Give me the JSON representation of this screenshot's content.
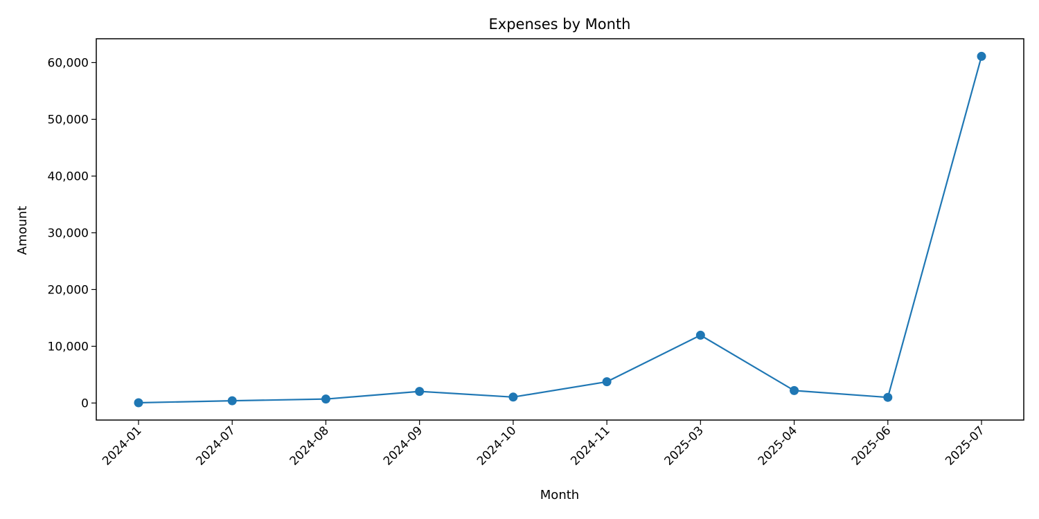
{
  "chart_data": {
    "type": "line",
    "title": "Expenses by Month",
    "xlabel": "Month",
    "ylabel": "Amount",
    "categories": [
      "2024-01",
      "2024-07",
      "2024-08",
      "2024-09",
      "2024-10",
      "2024-11",
      "2025-03",
      "2025-04",
      "2025-06",
      "2025-07"
    ],
    "series": [
      {
        "values": [
          50,
          400,
          700,
          2050,
          1050,
          3750,
          11950,
          2200,
          1000,
          61100
        ]
      }
    ],
    "ylim": [
      -3000,
      64200
    ],
    "yticks": [
      0,
      10000,
      20000,
      30000,
      40000,
      50000,
      60000
    ],
    "ytick_labels": [
      "0",
      "10,000",
      "20,000",
      "30,000",
      "40,000",
      "50,000",
      "60,000"
    ],
    "grid": false,
    "legend": "none",
    "line_color": "#1f77b4"
  }
}
